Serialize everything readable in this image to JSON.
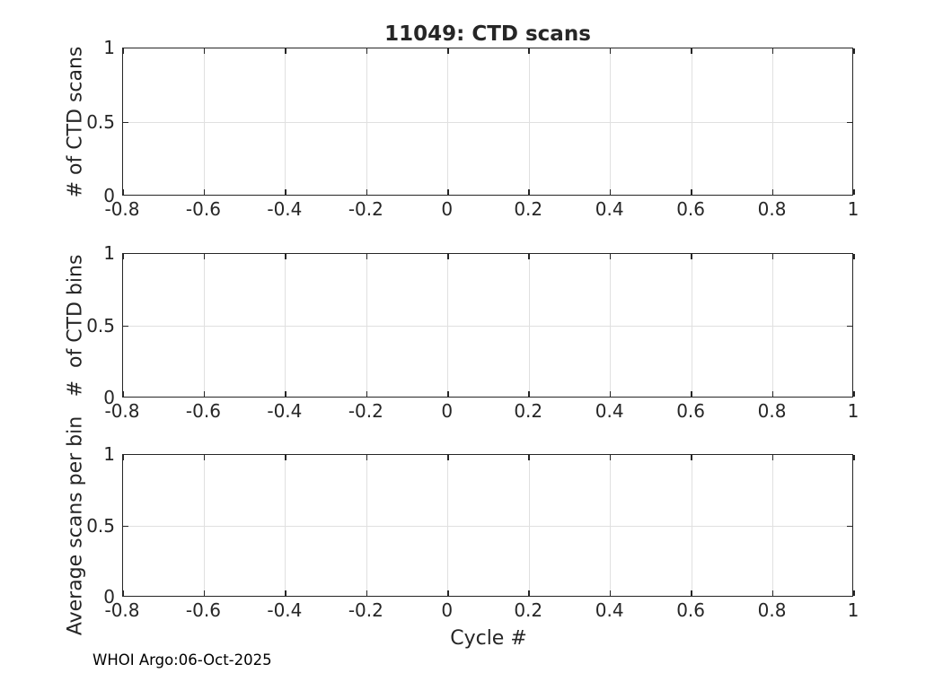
{
  "figure": {
    "title": "11049: CTD scans",
    "xlabel": "Cycle #",
    "footer": "WHOI Argo:06-Oct-2025"
  },
  "colors": {
    "axis": "#262626",
    "grid": "#e0e0e0",
    "text": "#262626",
    "background": "#ffffff"
  },
  "chart_data": [
    {
      "type": "line",
      "title": "11049: CTD scans",
      "ylabel": "# of CTD scans",
      "xlabel": "",
      "xlim": [
        -0.8,
        1
      ],
      "ylim": [
        0,
        1
      ],
      "xtick_labels": [
        "-0.8",
        "-0.6",
        "-0.4",
        "-0.2",
        "0",
        "0.2",
        "0.4",
        "0.6",
        "0.8",
        "1"
      ],
      "ytick_labels": [
        "0",
        "0.5",
        "1"
      ],
      "ytick_values": [
        0,
        0.5,
        1
      ],
      "grid": true,
      "legend": null,
      "series": []
    },
    {
      "type": "line",
      "title": "",
      "ylabel": "#  of CTD bins",
      "xlabel": "",
      "xlim": [
        -0.8,
        1
      ],
      "ylim": [
        0,
        1
      ],
      "xtick_labels": [
        "-0.8",
        "-0.6",
        "-0.4",
        "-0.2",
        "0",
        "0.2",
        "0.4",
        "0.6",
        "0.8",
        "1"
      ],
      "ytick_labels": [
        "0",
        "0.5",
        "1"
      ],
      "ytick_values": [
        0,
        0.5,
        1
      ],
      "grid": true,
      "legend": null,
      "series": []
    },
    {
      "type": "line",
      "title": "",
      "ylabel": "Average scans per bin",
      "xlabel": "Cycle #",
      "xlim": [
        -0.8,
        1
      ],
      "ylim": [
        0,
        1
      ],
      "xtick_labels": [
        "-0.8",
        "-0.6",
        "-0.4",
        "-0.2",
        "0",
        "0.2",
        "0.4",
        "0.6",
        "0.8",
        "1"
      ],
      "ytick_labels": [
        "0",
        "0.5",
        "1"
      ],
      "ytick_values": [
        0,
        0.5,
        1
      ],
      "grid": true,
      "legend": null,
      "series": []
    }
  ]
}
